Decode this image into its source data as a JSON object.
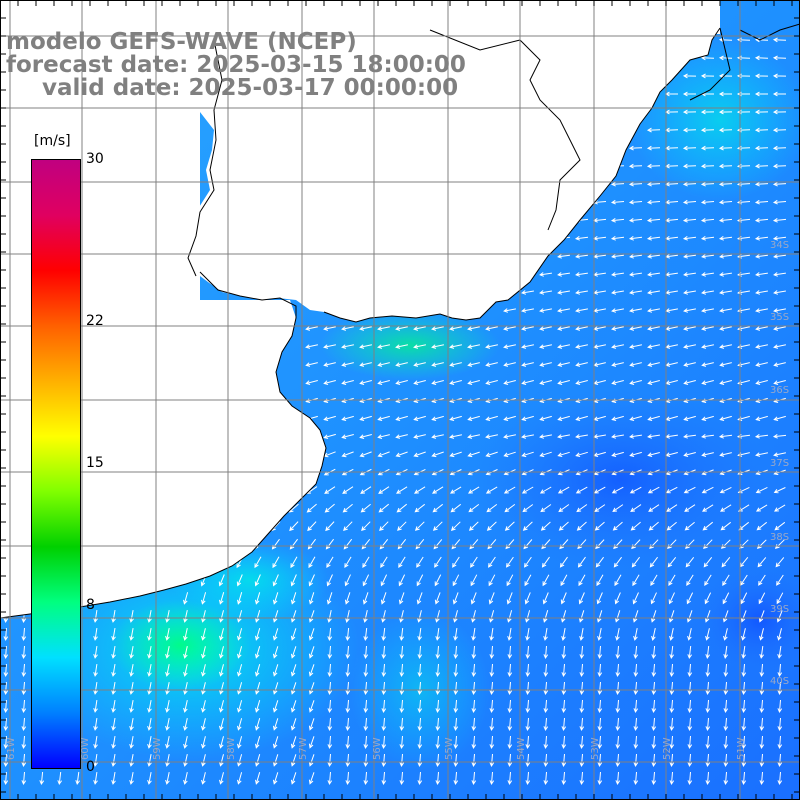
{
  "title": {
    "line1": "modelo GEFS-WAVE (NCEP)",
    "line2": "forecast date: 2025-03-15 18:00:00",
    "line3": "valid date: 2025-03-17 00:00:00"
  },
  "colorbar": {
    "unit": "[m/s]",
    "ticks": [
      {
        "label": "30",
        "value": 30
      },
      {
        "label": "22",
        "value": 22
      },
      {
        "label": "15",
        "value": 15
      },
      {
        "label": "8",
        "value": 8
      },
      {
        "label": "0",
        "value": 0
      }
    ],
    "range": [
      0,
      30
    ],
    "colors": [
      "#0000ff",
      "#0080ff",
      "#00e0ff",
      "#00ff80",
      "#00d000",
      "#80ff00",
      "#ffff00",
      "#ffb000",
      "#ff6000",
      "#ff0000",
      "#e00060",
      "#c00080"
    ]
  },
  "grid": {
    "lat_labels": [
      "34S",
      "35S",
      "36S",
      "37S",
      "38S",
      "39S",
      "40S"
    ],
    "lon_labels": [
      "61W",
      "60W",
      "59W",
      "58W",
      "57W",
      "56W",
      "55W",
      "54W",
      "53W",
      "52W",
      "51W"
    ]
  },
  "map": {
    "land_color": "#ffffff",
    "coast_color": "#000000",
    "grid_color": "#808080",
    "ocean_base_color": "#1e90ff"
  }
}
